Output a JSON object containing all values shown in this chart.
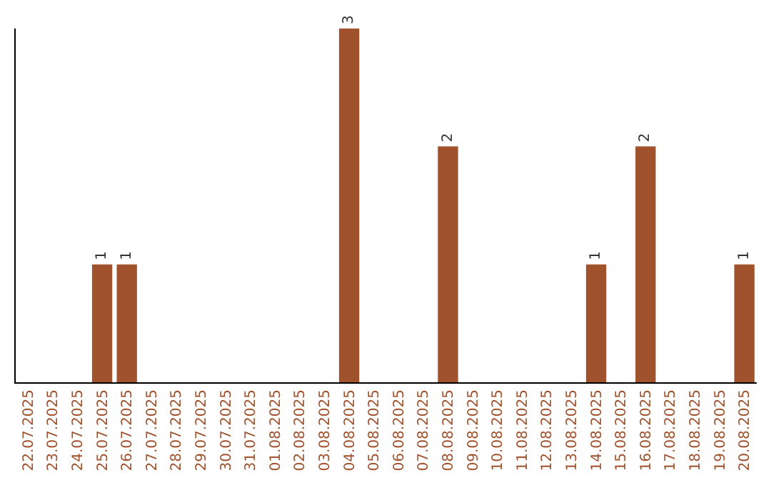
{
  "chart_data": {
    "type": "bar",
    "categories": [
      "22.07.2025",
      "23.07.2025",
      "24.07.2025",
      "25.07.2025",
      "26.07.2025",
      "27.07.2025",
      "28.07.2025",
      "29.07.2025",
      "30.07.2025",
      "31.07.2025",
      "01.08.2025",
      "02.08.2025",
      "03.08.2025",
      "04.08.2025",
      "05.08.2025",
      "06.08.2025",
      "07.08.2025",
      "08.08.2025",
      "09.08.2025",
      "10.08.2025",
      "11.08.2025",
      "12.08.2025",
      "13.08.2025",
      "14.08.2025",
      "15.08.2025",
      "16.08.2025",
      "17.08.2025",
      "18.08.2025",
      "19.08.2025",
      "20.08.2025"
    ],
    "values": [
      0,
      0,
      0,
      1,
      1,
      0,
      0,
      0,
      0,
      0,
      0,
      0,
      0,
      3,
      0,
      0,
      0,
      2,
      0,
      0,
      0,
      0,
      0,
      1,
      0,
      2,
      0,
      0,
      0,
      1
    ],
    "value_labels": [
      null,
      null,
      null,
      "1",
      "1",
      null,
      null,
      null,
      null,
      null,
      null,
      null,
      null,
      "3",
      null,
      null,
      null,
      "2",
      null,
      null,
      null,
      null,
      null,
      "1",
      null,
      "2",
      null,
      null,
      null,
      "1"
    ],
    "color": "#a0522d",
    "ylim": [
      0,
      3
    ],
    "grid": false,
    "legend": false
  }
}
